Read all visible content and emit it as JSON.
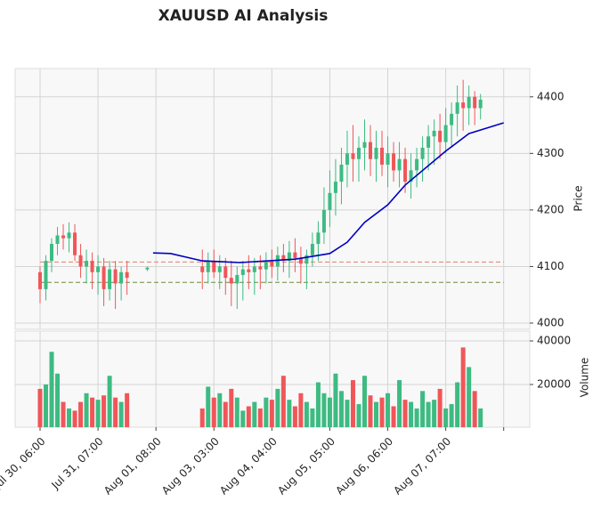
{
  "chart_data": {
    "type": "candlestick",
    "title": "XAUUSD AI Analysis",
    "ylabel": "Price",
    "y2label": "Volume",
    "up_color": "#3dbb82",
    "down_color": "#f05658",
    "xlim": [
      -8.6,
      169
    ],
    "xticks": [
      {
        "value": 0,
        "label": "Jul 30, 06:00"
      },
      {
        "value": 20,
        "label": "Jul 31, 07:00"
      },
      {
        "value": 40,
        "label": "Aug 01, 08:00"
      },
      {
        "value": 60,
        "label": "Aug 03, 03:00"
      },
      {
        "value": 80,
        "label": "Aug 04, 04:00"
      },
      {
        "value": 100,
        "label": "Aug 05, 05:00"
      },
      {
        "value": 120,
        "label": "Aug 06, 06:00"
      },
      {
        "value": 140,
        "label": "Aug 07, 07:00"
      },
      {
        "value": 160,
        "label": null
      }
    ],
    "ylim": [
      3989,
      4450
    ],
    "yticks": [
      4000,
      4100,
      4200,
      4300,
      4400
    ],
    "y2lim": [
      400,
      44500
    ],
    "y2ticks": [
      20000,
      40000
    ],
    "grid": true,
    "x": [
      0,
      2,
      4,
      6,
      8,
      10,
      12,
      14,
      16,
      18,
      20,
      22,
      24,
      26,
      28,
      30,
      37,
      56,
      58,
      60,
      62,
      64,
      66,
      68,
      70,
      72,
      74,
      76,
      78,
      80,
      82,
      84,
      86,
      88,
      90,
      92,
      94,
      96,
      98,
      100,
      102,
      104,
      106,
      108,
      110,
      112,
      114,
      116,
      118,
      120,
      122,
      124,
      126,
      128,
      130,
      132,
      134,
      136,
      138,
      140,
      142,
      144,
      146,
      148,
      150,
      152
    ],
    "open": [
      4090,
      4060,
      4110,
      4140,
      4155,
      4150,
      4160,
      4120,
      4100,
      4110,
      4090,
      4100,
      4060,
      4095,
      4070,
      4090,
      4095,
      4100,
      4090,
      4110,
      4090,
      4100,
      4080,
      4070,
      4085,
      4095,
      4090,
      4100,
      4095,
      4110,
      4100,
      4120,
      4110,
      4125,
      4115,
      4105,
      4120,
      4140,
      4160,
      4200,
      4230,
      4250,
      4280,
      4300,
      4290,
      4310,
      4320,
      4290,
      4310,
      4280,
      4300,
      4270,
      4290,
      4250,
      4270,
      4290,
      4310,
      4330,
      4340,
      4320,
      4350,
      4370,
      4390,
      4380,
      4400,
      4380
    ],
    "high": [
      4100,
      4120,
      4150,
      4170,
      4175,
      4178,
      4175,
      4140,
      4130,
      4125,
      4120,
      4115,
      4110,
      4110,
      4100,
      4110,
      4100,
      4130,
      4125,
      4130,
      4120,
      4115,
      4110,
      4100,
      4110,
      4120,
      4115,
      4120,
      4125,
      4130,
      4135,
      4140,
      4145,
      4150,
      4135,
      4130,
      4160,
      4180,
      4240,
      4270,
      4290,
      4310,
      4340,
      4350,
      4330,
      4360,
      4350,
      4340,
      4340,
      4330,
      4320,
      4320,
      4310,
      4300,
      4310,
      4330,
      4350,
      4360,
      4370,
      4380,
      4390,
      4420,
      4430,
      4420,
      4410,
      4405
    ],
    "low": [
      4035,
      4040,
      4090,
      4120,
      4130,
      4125,
      4110,
      4080,
      4070,
      4060,
      4050,
      4030,
      4040,
      4025,
      4040,
      4050,
      4092,
      4060,
      4070,
      4080,
      4060,
      4050,
      4030,
      4025,
      4040,
      4060,
      4050,
      4060,
      4070,
      4080,
      4075,
      4090,
      4080,
      4090,
      4070,
      4060,
      4100,
      4110,
      4140,
      4170,
      4190,
      4210,
      4240,
      4250,
      4250,
      4270,
      4260,
      4250,
      4260,
      4240,
      4250,
      4240,
      4230,
      4220,
      4240,
      4250,
      4270,
      4280,
      4290,
      4300,
      4310,
      4330,
      4340,
      4350,
      4350,
      4360
    ],
    "close": [
      4060,
      4110,
      4140,
      4155,
      4150,
      4160,
      4120,
      4100,
      4110,
      4090,
      4100,
      4060,
      4095,
      4070,
      4090,
      4080,
      4098,
      4090,
      4110,
      4090,
      4100,
      4080,
      4070,
      4085,
      4095,
      4090,
      4100,
      4095,
      4110,
      4100,
      4120,
      4110,
      4125,
      4115,
      4105,
      4120,
      4140,
      4160,
      4200,
      4230,
      4250,
      4280,
      4300,
      4290,
      4310,
      4320,
      4290,
      4310,
      4280,
      4300,
      4270,
      4290,
      4250,
      4270,
      4290,
      4310,
      4330,
      4340,
      4320,
      4350,
      4370,
      4390,
      4380,
      4400,
      4380,
      4395
    ],
    "volume": [
      18000,
      20000,
      35000,
      25000,
      12000,
      9000,
      8000,
      12000,
      16000,
      14000,
      13000,
      15000,
      24000,
      14000,
      12000,
      16000,
      null,
      9000,
      19000,
      14000,
      16000,
      12000,
      18000,
      14000,
      8000,
      10000,
      12000,
      9000,
      14000,
      13000,
      18000,
      24000,
      13000,
      10000,
      16000,
      12000,
      9000,
      21000,
      16000,
      14000,
      25000,
      17000,
      13000,
      22000,
      11000,
      24000,
      15000,
      12000,
      14000,
      16000,
      10000,
      22000,
      13000,
      12000,
      9000,
      17000,
      12000,
      13000,
      18000,
      9000,
      11000,
      21000,
      37000,
      28000,
      17000,
      9000
    ],
    "ma": {
      "color": "#0000c0",
      "x": [
        39,
        45,
        56,
        69,
        88,
        100,
        106,
        112,
        120,
        126,
        140,
        148,
        160
      ],
      "values": [
        4124,
        4123,
        4110,
        4107,
        4113,
        4123,
        4143,
        4178,
        4209,
        4244,
        4304,
        4335,
        4354
      ]
    },
    "hlines": [
      {
        "value": 4108,
        "color": "#e0806a"
      },
      {
        "value": 4072,
        "color": "#6b8c3c"
      }
    ]
  }
}
